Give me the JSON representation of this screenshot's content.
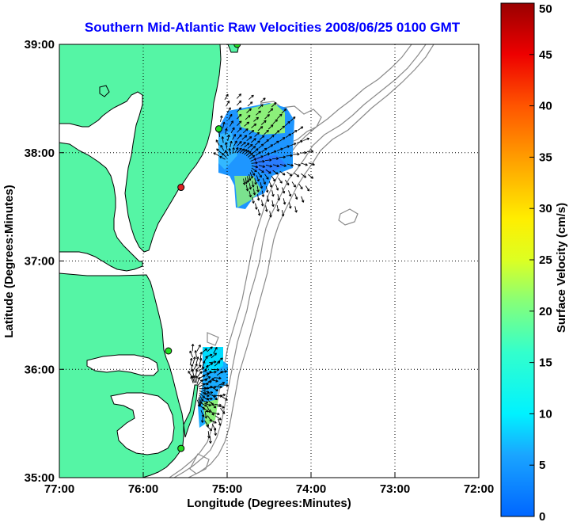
{
  "title": "Southern Mid-Atlantic Raw Velocities 2008/06/25 0100 GMT",
  "map": {
    "xlabel": "Longitude (Degrees:Minutes)",
    "ylabel": "Latitude (Degrees:Minutes)",
    "x_ticks": [
      "77:00",
      "76:00",
      "75:00",
      "74:00",
      "73:00",
      "72:00"
    ],
    "y_ticks": [
      "39:00",
      "38:00",
      "37:00",
      "36:00",
      "35:00"
    ],
    "lon_range": [
      -77.0,
      -72.0
    ],
    "lat_range": [
      35.0,
      39.0
    ],
    "grid": "dotted",
    "land_color": "#55f5a5",
    "coast_color": "#000000",
    "bathymetry_color": "#8a8a8a"
  },
  "stations": [
    {
      "lon": -74.88,
      "lat": 39.0,
      "color": "#22dd22"
    },
    {
      "lon": -75.1,
      "lat": 38.22,
      "color": "#22dd22"
    },
    {
      "lon": -75.55,
      "lat": 37.68,
      "color": "#dd2222"
    },
    {
      "lon": -75.7,
      "lat": 36.17,
      "color": "#22dd22"
    },
    {
      "lon": -75.55,
      "lat": 35.27,
      "color": "#22dd22"
    }
  ],
  "colorbar": {
    "label": "Surface Velocity (cm/s)",
    "min": 0,
    "max": 50,
    "ticks": [
      "0",
      "5",
      "10",
      "15",
      "20",
      "25",
      "30",
      "35",
      "40",
      "45",
      "50"
    ]
  }
}
